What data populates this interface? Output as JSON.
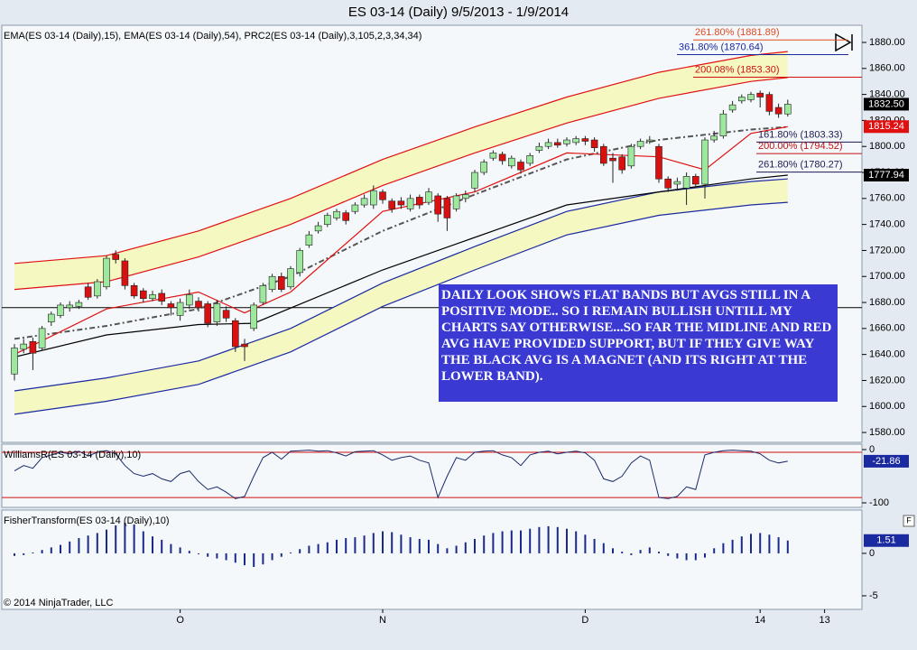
{
  "title": "ES 03-14 (Daily)  9/5/2013 - 1/9/2014",
  "copyright": "© 2014 NinjaTrader, LLC",
  "chart_data": [
    {
      "type": "candlestick",
      "label": "EMA(ES 03-14 (Daily),15), EMA(ES 03-14 (Daily),54), PRC2(ES 03-14 (Daily),3,105,2,3,34,34)",
      "categories": [
        null,
        null,
        null,
        null,
        null,
        null,
        null,
        null,
        null,
        null,
        null,
        null,
        null,
        null,
        null,
        null,
        null,
        null,
        "O",
        null,
        null,
        null,
        null,
        null,
        null,
        null,
        null,
        null,
        null,
        null,
        null,
        null,
        null,
        null,
        null,
        null,
        null,
        null,
        null,
        null,
        "N",
        null,
        null,
        null,
        null,
        null,
        null,
        null,
        null,
        null,
        null,
        null,
        null,
        null,
        null,
        null,
        null,
        null,
        null,
        null,
        null,
        null,
        "D",
        null,
        null,
        null,
        null,
        null,
        null,
        null,
        null,
        null,
        null,
        null,
        null,
        null,
        null,
        null,
        null,
        null,
        null,
        "14",
        null,
        null,
        null,
        null,
        null,
        null,
        "13"
      ],
      "open": [
        1625,
        1644,
        1650,
        1645,
        1665,
        1670,
        1676,
        1677,
        1692,
        1685,
        1692,
        1717,
        1712,
        1693,
        1689,
        1683,
        1687,
        1679,
        1670,
        1678,
        1681,
        1679,
        1665,
        1674,
        1666,
        1648,
        1660,
        1680,
        1690,
        1700,
        1692,
        1703,
        1724,
        1735,
        1740,
        1745,
        1749,
        1750,
        1755,
        1755,
        1765,
        1758,
        1758,
        1752,
        1761,
        1757,
        1762,
        1760,
        1752,
        1760,
        1768,
        1780,
        1791,
        1794,
        1785,
        1788,
        1787,
        1797,
        1800,
        1803,
        1802,
        1803,
        1806,
        1805,
        1800,
        1791,
        1792,
        1785,
        1800,
        1804,
        1800,
        1775,
        1771,
        1768,
        1777,
        1771,
        1805,
        1808,
        1828,
        1835,
        1836,
        1841,
        1840,
        1830,
        1825,
        null,
        null,
        null,
        null
      ],
      "high": [
        1648,
        1652,
        1653,
        1662,
        1673,
        1680,
        1681,
        1682,
        1695,
        1698,
        1716,
        1720,
        1714,
        1695,
        1691,
        1689,
        1690,
        1681,
        1683,
        1690,
        1684,
        1681,
        1682,
        1677,
        1668,
        1652,
        1680,
        1695,
        1702,
        1703,
        1708,
        1722,
        1735,
        1742,
        1749,
        1752,
        1751,
        1757,
        1763,
        1770,
        1767,
        1760,
        1761,
        1763,
        1763,
        1768,
        1764,
        1762,
        1764,
        1766,
        1782,
        1790,
        1797,
        1796,
        1793,
        1790,
        1795,
        1803,
        1806,
        1806,
        1807,
        1808,
        1808,
        1807,
        1802,
        1795,
        1794,
        1802,
        1806,
        1808,
        1802,
        1777,
        1776,
        1780,
        1779,
        1807,
        1812,
        1828,
        1835,
        1840,
        1842,
        1843,
        1842,
        1833,
        1836,
        null,
        null,
        null,
        null
      ],
      "low": [
        1620,
        1641,
        1628,
        1643,
        1662,
        1668,
        1673,
        1675,
        1682,
        1683,
        1690,
        1710,
        1690,
        1683,
        1680,
        1681,
        1678,
        1670,
        1666,
        1675,
        1673,
        1661,
        1662,
        1665,
        1642,
        1635,
        1658,
        1678,
        1688,
        1688,
        1690,
        1700,
        1722,
        1733,
        1738,
        1743,
        1740,
        1748,
        1753,
        1752,
        1756,
        1749,
        1752,
        1750,
        1752,
        1755,
        1742,
        1735,
        1750,
        1757,
        1765,
        1778,
        1789,
        1786,
        1783,
        1779,
        1785,
        1795,
        1798,
        1799,
        1800,
        1801,
        1801,
        1796,
        1785,
        1772,
        1779,
        1783,
        1798,
        1802,
        1772,
        1765,
        1766,
        1755,
        1768,
        1760,
        1803,
        1806,
        1826,
        1833,
        1834,
        1830,
        1824,
        1822,
        1823,
        null,
        null,
        null,
        null
      ],
      "close": [
        1645,
        1648,
        1641,
        1660,
        1671,
        1678,
        1678,
        1680,
        1684,
        1696,
        1714,
        1713,
        1693,
        1685,
        1683,
        1686,
        1681,
        1676,
        1680,
        1686,
        1676,
        1664,
        1679,
        1668,
        1646,
        1646,
        1678,
        1693,
        1700,
        1690,
        1706,
        1720,
        1732,
        1739,
        1747,
        1750,
        1743,
        1755,
        1760,
        1766,
        1759,
        1752,
        1755,
        1760,
        1755,
        1765,
        1748,
        1745,
        1762,
        1763,
        1780,
        1788,
        1795,
        1789,
        1791,
        1782,
        1793,
        1800,
        1803,
        1801,
        1805,
        1806,
        1804,
        1799,
        1787,
        1789,
        1782,
        1800,
        1804,
        1805,
        1775,
        1768,
        1773,
        1777,
        1771,
        1805,
        1808,
        1825,
        1832,
        1838,
        1840,
        1838,
        1827,
        1825,
        1832.5,
        null,
        null,
        null,
        null
      ],
      "up_color": "#9ee89e",
      "down_color": "#d81010",
      "ylim": [
        1572.4,
        1893.2
      ],
      "yticks": [
        {
          "value": 1580,
          "label": "1580.00"
        },
        {
          "value": 1600,
          "label": "1600.00"
        },
        {
          "value": 1620,
          "label": "1620.00"
        },
        {
          "value": 1640,
          "label": "1640.00"
        },
        {
          "value": 1660,
          "label": "1660.00"
        },
        {
          "value": 1680,
          "label": "1680.00"
        },
        {
          "value": 1700,
          "label": "1700.00"
        },
        {
          "value": 1720,
          "label": "1720.00"
        },
        {
          "value": 1740,
          "label": "1740.00"
        },
        {
          "value": 1760,
          "label": "1760.00"
        },
        {
          "value": 1780,
          "label": "1780.00"
        },
        {
          "value": 1800,
          "label": "1800.00"
        },
        {
          "value": 1820,
          "label": "1820.00"
        },
        {
          "value": 1840,
          "label": "1840.00"
        },
        {
          "value": 1860,
          "label": "1860.00"
        },
        {
          "value": 1880,
          "label": "1880.00"
        }
      ],
      "bands": [
        {
          "color": "#e01010",
          "fill": "#f6f8c2",
          "x": [
            0,
            10,
            20,
            30,
            40,
            50,
            60,
            70,
            80,
            84
          ],
          "upper": [
            1710,
            1716,
            1735,
            1760,
            1790,
            1815,
            1838,
            1857,
            1870,
            1873
          ],
          "lower": [
            1690,
            1696,
            1715,
            1740,
            1770,
            1795,
            1818,
            1837,
            1850,
            1853
          ]
        },
        {
          "color": "#1a2aa0",
          "fill": "#f6f8c2",
          "x": [
            0,
            10,
            20,
            30,
            40,
            50,
            60,
            70,
            80,
            84
          ],
          "upper": [
            1612,
            1622,
            1635,
            1660,
            1695,
            1723,
            1750,
            1765,
            1773,
            1775
          ],
          "lower": [
            1594,
            1604,
            1617,
            1642,
            1677,
            1705,
            1732,
            1747,
            1755,
            1757
          ]
        }
      ],
      "overlays": [
        {
          "color": "#555555",
          "dash": true,
          "x": [
            0,
            10,
            20,
            30,
            40,
            50,
            60,
            70,
            80,
            84
          ],
          "values": [
            1652,
            1662,
            1675,
            1700,
            1735,
            1763,
            1790,
            1805,
            1813,
            1815
          ]
        },
        {
          "color": "#e01010",
          "dash": false,
          "x": [
            0,
            10,
            20,
            25,
            30,
            40,
            50,
            60,
            70,
            75,
            80,
            84
          ],
          "values": [
            1640,
            1675,
            1688,
            1672,
            1688,
            1750,
            1765,
            1795,
            1792,
            1782,
            1810,
            1815.24
          ]
        },
        {
          "color": "#000000",
          "dash": false,
          "x": [
            0,
            10,
            20,
            26,
            40,
            50,
            60,
            70,
            80,
            84
          ],
          "values": [
            1638,
            1655,
            1663,
            1664,
            1705,
            1730,
            1755,
            1765,
            1775,
            1777.94
          ]
        }
      ],
      "levels": [
        {
          "value": 1676,
          "color": "#000000"
        }
      ],
      "fib_levels": [
        {
          "label": "261.80% (1881.89)",
          "value": 1881.89,
          "color": "#e04a20"
        },
        {
          "label": "361.80% (1870.64)",
          "value": 1870.64,
          "color": "#1a2aa0"
        },
        {
          "label": "200.08% (1853.30)",
          "value": 1853.3,
          "color": "#d01010"
        },
        {
          "label": "161.80% (1803.33)",
          "value": 1803.33,
          "color": "#1a1a50"
        },
        {
          "label": "200.00% (1794.52)",
          "value": 1794.52,
          "color": "#c01010"
        },
        {
          "label": "261.80% (1780.27)",
          "value": 1780.27,
          "color": "#1a1a50"
        }
      ],
      "price_tags": [
        {
          "value": 1832.5,
          "label": "1832.50",
          "color": "#000000"
        },
        {
          "value": 1815.24,
          "label": "1815.24",
          "color": "#e01010"
        },
        {
          "value": 1777.94,
          "label": "1777.94",
          "color": "#000000"
        }
      ],
      "annotation": "DAILY LOOK SHOWS FLAT BANDS BUT AVGS STILL IN A POSITIVE MODE.. SO I REMAIN BULLISH UNTILL MY CHARTS SAY OTHERWISE...SO FAR THE MIDLINE AND RED AVG HAVE PROVIDED SUPPORT, BUT IF THEY GIVE WAY THE BLACK AVG IS A MAGNET (AND ITS RIGHT AT THE LOWER BAND)."
    },
    {
      "type": "line",
      "label": "WilliamsR(ES 03-14 (Daily),10)",
      "color": "#1a2a6a",
      "tag_color": "#1a2aa0",
      "values": [
        -40,
        -30,
        -35,
        -15,
        -10,
        -5,
        -8,
        -3,
        -12,
        -5,
        -2,
        -8,
        -30,
        -45,
        -50,
        -45,
        -55,
        -60,
        -45,
        -40,
        -60,
        -75,
        -70,
        -80,
        -92,
        -88,
        -50,
        -15,
        -5,
        -18,
        -3,
        -2,
        -1,
        -3,
        -2,
        -6,
        -12,
        -4,
        -3,
        -2,
        -10,
        -20,
        -15,
        -12,
        -20,
        -25,
        -90,
        -50,
        -15,
        -20,
        -5,
        -3,
        -2,
        -10,
        -15,
        -30,
        -10,
        -5,
        -3,
        -8,
        -5,
        -3,
        -6,
        -20,
        -55,
        -60,
        -50,
        -25,
        -12,
        -20,
        -90,
        -92,
        -88,
        -70,
        -75,
        -10,
        -5,
        -2,
        -1,
        -2,
        -3,
        -8,
        -20,
        -25,
        -21.86,
        null,
        null,
        null,
        null
      ],
      "ylim": [
        -108.5,
        10.2
      ],
      "yticks": [
        0,
        -100
      ],
      "levels": [
        {
          "value": -5,
          "color": "#d01010"
        },
        {
          "value": -90,
          "color": "#d01010"
        }
      ]
    },
    {
      "type": "bar",
      "label": "FisherTransform(ES 03-14 (Daily),10)",
      "color": "#1a2a8a",
      "tag_color": "#1a2aa0",
      "button": "F",
      "values": [
        -0.3,
        -0.2,
        0.1,
        0.4,
        0.7,
        1.0,
        1.4,
        1.8,
        2.1,
        2.4,
        2.8,
        3.3,
        3.6,
        3.4,
        2.6,
        2.0,
        1.6,
        1.1,
        0.7,
        0.3,
        -0.1,
        -0.4,
        -0.6,
        -0.8,
        -1.1,
        -1.4,
        -1.6,
        -1.3,
        -0.8,
        -0.4,
        0.1,
        0.5,
        0.9,
        1.1,
        1.3,
        1.6,
        1.8,
        1.9,
        2.1,
        2.4,
        2.6,
        2.5,
        2.2,
        1.9,
        1.7,
        1.6,
        1.1,
        0.6,
        0.9,
        1.3,
        1.7,
        2.1,
        2.4,
        2.6,
        2.7,
        2.7,
        2.9,
        3.1,
        3.2,
        3.1,
        2.9,
        2.6,
        2.2,
        1.7,
        1.2,
        0.6,
        0.2,
        -0.2,
        0.4,
        0.7,
        0.2,
        -0.3,
        -0.6,
        -0.8,
        -0.8,
        -0.5,
        0.6,
        1.2,
        1.6,
        2.0,
        2.3,
        2.4,
        2.2,
        1.9,
        1.51,
        null,
        null,
        null,
        null
      ],
      "ylim": [
        -6.6,
        5.1
      ],
      "yticks": [
        0,
        -5
      ]
    }
  ]
}
